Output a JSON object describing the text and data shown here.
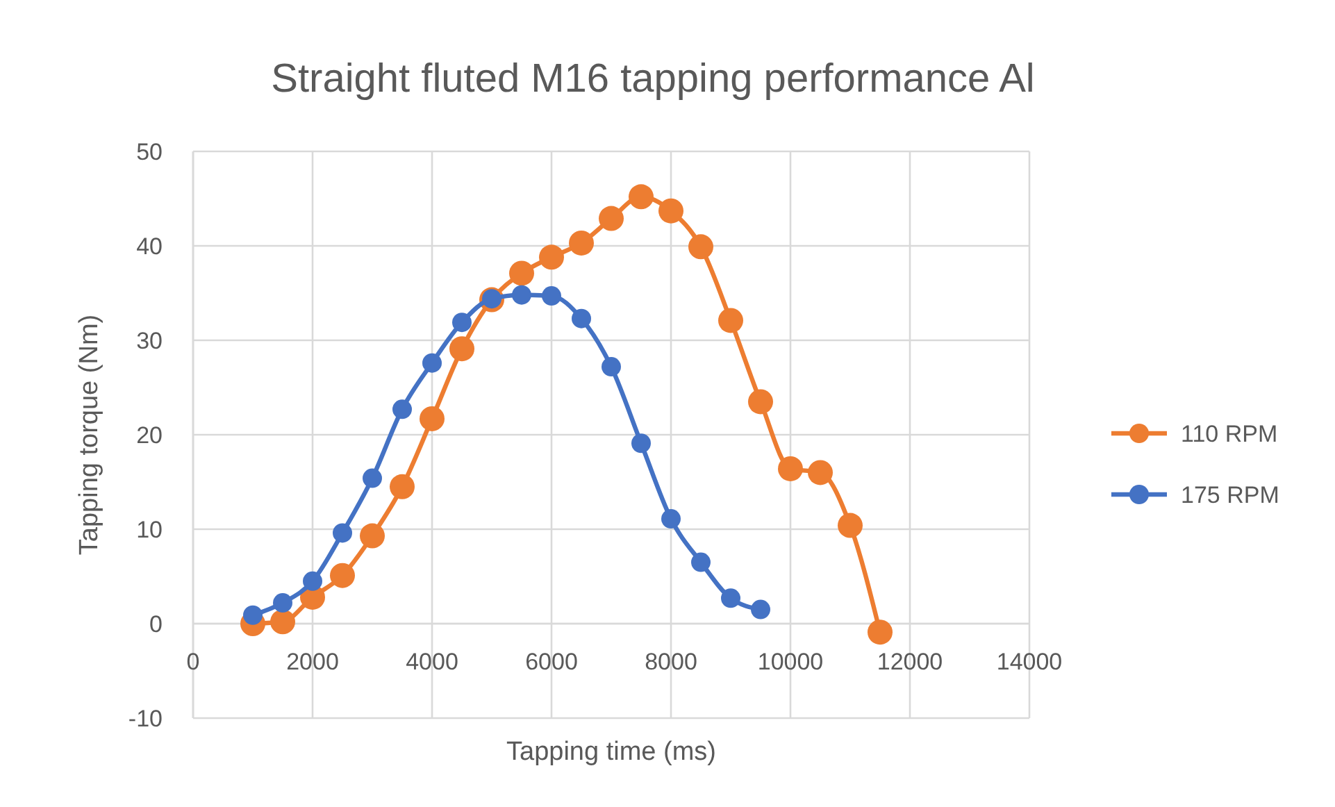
{
  "chart_data": {
    "type": "line",
    "title": "Straight fluted M16 tapping performance Al",
    "xlabel": "Tapping time (ms)",
    "ylabel": "Tapping torque (Nm)",
    "xlim": [
      0,
      14000
    ],
    "xticks": [
      0,
      2000,
      4000,
      6000,
      8000,
      10000,
      12000,
      14000
    ],
    "ylim": [
      -10,
      50
    ],
    "yticks": [
      -10,
      0,
      10,
      20,
      30,
      40,
      50
    ],
    "grid": true,
    "legend": "right",
    "marker": "circle",
    "line_style": "solid",
    "series": [
      {
        "name": "110 RPM",
        "color": "#ed7d31",
        "x": [
          1000,
          1500,
          2000,
          2500,
          3000,
          3500,
          4000,
          4500,
          5000,
          5500,
          6000,
          6500,
          7000,
          7500,
          8000,
          8500,
          9000,
          9500,
          10000,
          10500,
          11000,
          11500
        ],
        "values": [
          0,
          0.2,
          2.8,
          5.1,
          9.3,
          14.5,
          21.7,
          29.1,
          34.3,
          37.1,
          38.8,
          40.3,
          42.9,
          45.2,
          43.7,
          39.9,
          32.1,
          23.5,
          16.4,
          16.0,
          10.4,
          -0.9
        ]
      },
      {
        "name": "175 RPM",
        "color": "#4472c4",
        "x": [
          1000,
          1500,
          2000,
          2500,
          3000,
          3500,
          4000,
          4500,
          5000,
          5500,
          6000,
          6500,
          7000,
          7500,
          8000,
          8500,
          9000,
          9500
        ],
        "values": [
          0.9,
          2.2,
          4.5,
          9.6,
          15.4,
          22.7,
          27.6,
          31.9,
          34.4,
          34.8,
          34.7,
          32.3,
          27.2,
          19.1,
          11.1,
          6.5,
          2.7,
          1.5
        ]
      }
    ]
  }
}
